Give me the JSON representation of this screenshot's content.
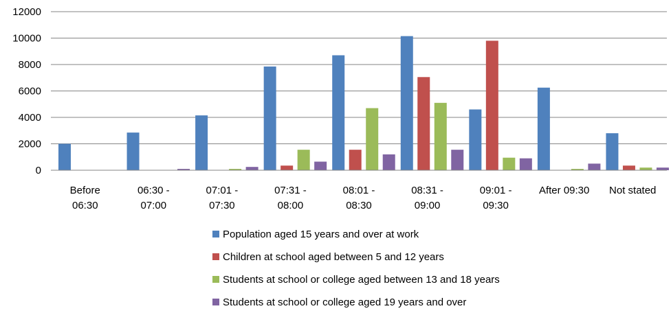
{
  "chart_data": {
    "type": "bar",
    "title": "",
    "xlabel": "",
    "ylabel": "",
    "ylim": [
      0,
      12000
    ],
    "yticks": [
      0,
      2000,
      4000,
      6000,
      8000,
      10000,
      12000
    ],
    "grid": "horizontal",
    "legend_position": "bottom",
    "categories": [
      [
        "Before",
        "06:30"
      ],
      [
        "06:30 -",
        "07:00"
      ],
      [
        "07:01 -",
        "07:30"
      ],
      [
        "07:31 -",
        "08:00"
      ],
      [
        "08:01 -",
        "08:30"
      ],
      [
        "08:31 -",
        "09:00"
      ],
      [
        "09:01 -",
        "09:30"
      ],
      [
        "After 09:30"
      ],
      [
        "Not stated"
      ]
    ],
    "series": [
      {
        "name": "Population aged 15 years and over at work",
        "color": "#4F81BD",
        "values": [
          2000,
          2850,
          4150,
          7850,
          8700,
          10150,
          4600,
          6250,
          2800
        ]
      },
      {
        "name": "Children at school aged between 5 and 12 years",
        "color": "#C0504D",
        "values": [
          0,
          0,
          0,
          350,
          1550,
          7050,
          9800,
          0,
          350
        ]
      },
      {
        "name": "Students at school or college aged between 13 and 18 years",
        "color": "#9BBB59",
        "values": [
          0,
          0,
          100,
          1550,
          4700,
          5100,
          950,
          100,
          200
        ]
      },
      {
        "name": "Students at school or college aged 19 years and over",
        "color": "#8064A2",
        "values": [
          0,
          100,
          250,
          650,
          1200,
          1550,
          900,
          500,
          200
        ]
      }
    ]
  }
}
